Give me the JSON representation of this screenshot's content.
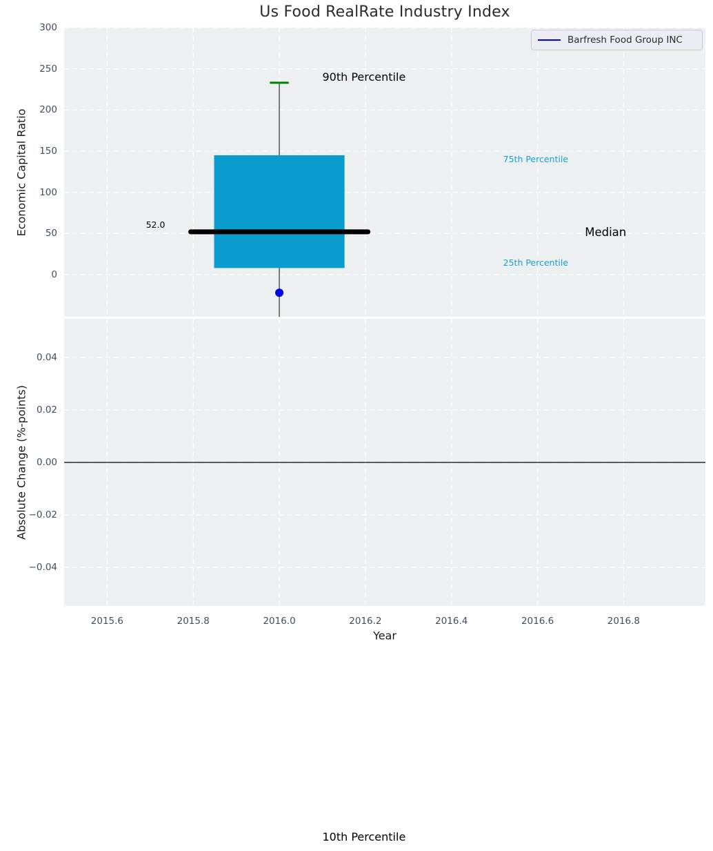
{
  "title": "Us Food RealRate Industry Index",
  "legend": {
    "label": "Barfresh Food Group INC",
    "line_color": "#0000ee"
  },
  "colors": {
    "axes_background": "#ecf0f1",
    "grid": "#ffffff",
    "tick_text": "#3f4d63",
    "box_fill": "#0a9ccd",
    "median_line": "#000000",
    "whisker": "#555555",
    "p90_cap": "#008000",
    "company_point": "#0000e6",
    "percentile_text": "#1a9fd2"
  },
  "chart_data": [
    {
      "type": "boxplot",
      "title": "Us Food RealRate Industry Index",
      "ylabel": "Economic Capital Ratio",
      "xlim": [
        2015.5,
        2016.99
      ],
      "ylim": [
        -51.2,
        300
      ],
      "grid": true,
      "legend_position": "upper right",
      "yticks": [
        {
          "label": "0",
          "value": 0
        },
        {
          "label": "50",
          "value": 50
        },
        {
          "label": "100",
          "value": 100
        },
        {
          "label": "150",
          "value": 150
        },
        {
          "label": "200",
          "value": 200
        },
        {
          "label": "250",
          "value": 250
        },
        {
          "label": "300",
          "value": 300
        }
      ],
      "box": {
        "x": 2016.0,
        "p10": -683,
        "p25": 8,
        "median": 52.0,
        "p75": 145,
        "p90": 233,
        "box_half_width": 0.1515,
        "median_half_width": 0.206,
        "cap_half_width": 0.022
      },
      "company_point": {
        "label": "Barfresh Food Group INC",
        "x": 2016.0,
        "y": -22
      },
      "annotations": [
        {
          "text": "90th Percentile",
          "x": 2016.1,
          "y": 240,
          "size": 16,
          "color": "#000000"
        },
        {
          "text": "75th Percentile",
          "x": 2016.52,
          "y": 140,
          "size": 12.5,
          "color": "#1a9fd2"
        },
        {
          "text": "Median",
          "x": 2016.71,
          "y": 51,
          "size": 16.5,
          "color": "#000000"
        },
        {
          "text": "25th Percentile",
          "x": 2016.52,
          "y": 14,
          "size": 12.5,
          "color": "#1a9fd2"
        },
        {
          "text": "52.0",
          "x": 2015.69,
          "y": 60,
          "size": 12.5,
          "color": "#000000"
        },
        {
          "text": "10th Percentile",
          "x": 2016.1,
          "y": -683,
          "size": 16,
          "color": "#000000"
        }
      ]
    },
    {
      "type": "line",
      "ylabel": "Absolute Change (%-points)",
      "xlabel": "Year",
      "xlim": [
        2015.5,
        2016.99
      ],
      "ylim": [
        -0.0547,
        0.0547
      ],
      "grid": true,
      "zero_line": 0,
      "yticks": [
        {
          "label": "0.04",
          "value": 0.04
        },
        {
          "label": "0.02",
          "value": 0.02
        },
        {
          "label": "0.00",
          "value": 0
        },
        {
          "label": "−0.02",
          "value": -0.02
        },
        {
          "label": "−0.04",
          "value": -0.04
        }
      ],
      "xticks": [
        {
          "label": "2015.6",
          "value": 2015.6
        },
        {
          "label": "2015.8",
          "value": 2015.8
        },
        {
          "label": "2016.0",
          "value": 2016.0
        },
        {
          "label": "2016.2",
          "value": 2016.2
        },
        {
          "label": "2016.4",
          "value": 2016.4
        },
        {
          "label": "2016.6",
          "value": 2016.6
        },
        {
          "label": "2016.8",
          "value": 2016.8
        }
      ],
      "series": []
    }
  ]
}
